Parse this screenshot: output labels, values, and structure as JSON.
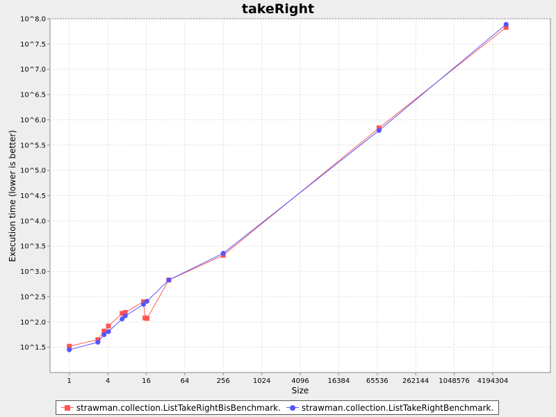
{
  "chart_data": {
    "type": "line",
    "title": "takeRight",
    "xlabel": "Size",
    "ylabel": "Execution time (lower is better)",
    "x_scale": "log2",
    "y_scale": "log10",
    "xlim": [
      0.5,
      33554432
    ],
    "ylim": [
      1.0,
      8.0
    ],
    "x_ticks": [
      1,
      4,
      16,
      64,
      256,
      1024,
      4096,
      16384,
      65536,
      262144,
      1048576,
      4194304
    ],
    "x_tick_labels": [
      "1",
      "4",
      "16",
      "64",
      "256",
      "1024",
      "4096",
      "16384",
      "65536",
      "262144",
      "1048576",
      "4194304"
    ],
    "y_ticks": [
      1.5,
      2.0,
      2.5,
      3.0,
      3.5,
      4.0,
      4.5,
      5.0,
      5.5,
      6.0,
      6.5,
      7.0,
      7.5,
      8.0
    ],
    "y_tick_labels": [
      "10^1.5",
      "10^2.0",
      "10^2.5",
      "10^3.0",
      "10^3.5",
      "10^4.0",
      "10^4.5",
      "10^5.0",
      "10^5.5",
      "10^6.0",
      "10^6.5",
      "10^7.0",
      "10^7.5",
      "10^8.0"
    ],
    "grid": true,
    "legend": "bottom",
    "series": [
      {
        "name": "strawman.collection.ListTakeRightBisBenchmark.",
        "color": "#ff5555",
        "marker": "square",
        "x": [
          1,
          2.8,
          3.5,
          4.1,
          6.7,
          7.5,
          14.5,
          15.3,
          16.4,
          36,
          256,
          70000,
          6800000
        ],
        "y": [
          1.52,
          1.65,
          1.82,
          1.92,
          2.17,
          2.19,
          2.4,
          2.08,
          2.07,
          2.83,
          3.32,
          5.84,
          7.83
        ]
      },
      {
        "name": "strawman.collection.ListTakeRightBenchmark.",
        "color": "#5555ff",
        "marker": "circle",
        "x": [
          1,
          2.8,
          3.5,
          4.1,
          6.7,
          7.5,
          14.5,
          16.4,
          36,
          256,
          70000,
          6800000
        ],
        "y": [
          1.45,
          1.6,
          1.75,
          1.81,
          2.06,
          2.12,
          2.35,
          2.41,
          2.83,
          3.36,
          5.79,
          7.89
        ]
      }
    ]
  }
}
